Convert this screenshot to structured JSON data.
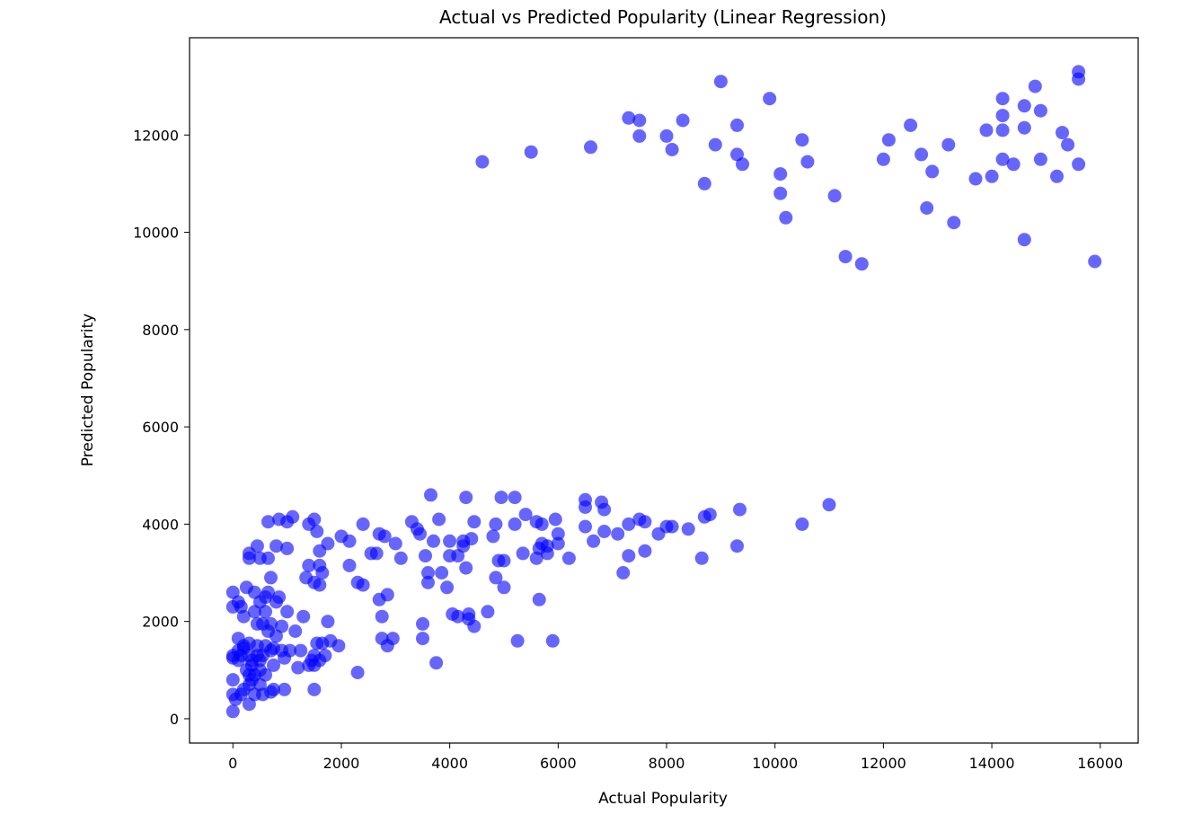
{
  "chart_data": {
    "type": "scatter",
    "title": "Actual vs Predicted Popularity (Linear Regression)",
    "xlabel": "Actual Popularity",
    "ylabel": "Predicted Popularity",
    "xlim": [
      -800,
      16700
    ],
    "ylim": [
      -500,
      14000
    ],
    "xticks": [
      "0",
      "2000",
      "4000",
      "6000",
      "8000",
      "10000",
      "12000",
      "14000",
      "16000"
    ],
    "yticks": [
      "0",
      "2000",
      "4000",
      "6000",
      "8000",
      "10000",
      "12000"
    ],
    "grid": false,
    "legend": "none",
    "point_color": "#0000ff",
    "point_alpha": 0.6,
    "points": [
      [
        4600,
        11450
      ],
      [
        5500,
        11650
      ],
      [
        6600,
        11750
      ],
      [
        7300,
        12350
      ],
      [
        7500,
        12300
      ],
      [
        7500,
        11980
      ],
      [
        8000,
        11980
      ],
      [
        8100,
        11700
      ],
      [
        8300,
        12300
      ],
      [
        8700,
        11000
      ],
      [
        8900,
        11800
      ],
      [
        9000,
        13100
      ],
      [
        9300,
        12200
      ],
      [
        9300,
        11600
      ],
      [
        9400,
        11400
      ],
      [
        9900,
        12750
      ],
      [
        10100,
        11200
      ],
      [
        10100,
        10800
      ],
      [
        10200,
        10300
      ],
      [
        10500,
        11900
      ],
      [
        10600,
        11450
      ],
      [
        11100,
        10750
      ],
      [
        11300,
        9500
      ],
      [
        11600,
        9350
      ],
      [
        12000,
        11500
      ],
      [
        12100,
        11900
      ],
      [
        12500,
        12200
      ],
      [
        12700,
        11600
      ],
      [
        12800,
        10500
      ],
      [
        12900,
        11250
      ],
      [
        13200,
        11800
      ],
      [
        13300,
        10200
      ],
      [
        13700,
        11100
      ],
      [
        13900,
        12100
      ],
      [
        14000,
        11150
      ],
      [
        14200,
        12750
      ],
      [
        14200,
        12400
      ],
      [
        14200,
        12100
      ],
      [
        14200,
        11500
      ],
      [
        14400,
        11400
      ],
      [
        14600,
        12600
      ],
      [
        14600,
        12150
      ],
      [
        14600,
        9850
      ],
      [
        14800,
        13000
      ],
      [
        14900,
        12500
      ],
      [
        14900,
        11500
      ],
      [
        15200,
        11150
      ],
      [
        15300,
        12050
      ],
      [
        15400,
        11800
      ],
      [
        15600,
        13300
      ],
      [
        15600,
        13150
      ],
      [
        15600,
        11400
      ],
      [
        15900,
        9400
      ],
      [
        0,
        150
      ],
      [
        0,
        500
      ],
      [
        0,
        800
      ],
      [
        0,
        1250
      ],
      [
        0,
        1300
      ],
      [
        0,
        2300
      ],
      [
        0,
        2600
      ],
      [
        50,
        400
      ],
      [
        100,
        1200
      ],
      [
        100,
        1400
      ],
      [
        100,
        1650
      ],
      [
        100,
        2400
      ],
      [
        150,
        500
      ],
      [
        150,
        1300
      ],
      [
        150,
        2300
      ],
      [
        200,
        1500
      ],
      [
        200,
        2100
      ],
      [
        200,
        600
      ],
      [
        200,
        1450
      ],
      [
        250,
        1000
      ],
      [
        250,
        2700
      ],
      [
        300,
        300
      ],
      [
        300,
        700
      ],
      [
        300,
        900
      ],
      [
        300,
        1300
      ],
      [
        300,
        1550
      ],
      [
        300,
        3300
      ],
      [
        300,
        3400
      ],
      [
        350,
        800
      ],
      [
        350,
        1100
      ],
      [
        350,
        1200
      ],
      [
        400,
        500
      ],
      [
        400,
        900
      ],
      [
        400,
        2200
      ],
      [
        400,
        2600
      ],
      [
        450,
        1300
      ],
      [
        450,
        1500
      ],
      [
        450,
        1950
      ],
      [
        450,
        3550
      ],
      [
        500,
        700
      ],
      [
        500,
        1000
      ],
      [
        500,
        1200
      ],
      [
        500,
        2400
      ],
      [
        500,
        3300
      ],
      [
        550,
        500
      ],
      [
        550,
        1300
      ],
      [
        550,
        1950
      ],
      [
        600,
        900
      ],
      [
        600,
        1500
      ],
      [
        600,
        2200
      ],
      [
        600,
        2500
      ],
      [
        650,
        1800
      ],
      [
        650,
        2600
      ],
      [
        650,
        3300
      ],
      [
        650,
        4050
      ],
      [
        700,
        550
      ],
      [
        700,
        1400
      ],
      [
        700,
        1950
      ],
      [
        700,
        2900
      ],
      [
        750,
        600
      ],
      [
        750,
        1100
      ],
      [
        750,
        1450
      ],
      [
        800,
        1700
      ],
      [
        800,
        2400
      ],
      [
        800,
        3550
      ],
      [
        850,
        2500
      ],
      [
        850,
        4100
      ],
      [
        900,
        1400
      ],
      [
        900,
        1900
      ],
      [
        950,
        600
      ],
      [
        950,
        1250
      ],
      [
        1000,
        2200
      ],
      [
        1000,
        3500
      ],
      [
        1000,
        4050
      ],
      [
        1050,
        1400
      ],
      [
        1100,
        4150
      ],
      [
        1150,
        1800
      ],
      [
        1200,
        1050
      ],
      [
        1250,
        1400
      ],
      [
        1300,
        2100
      ],
      [
        1350,
        2900
      ],
      [
        1400,
        1100
      ],
      [
        1400,
        3150
      ],
      [
        1400,
        4000
      ],
      [
        1450,
        1200
      ],
      [
        1500,
        600
      ],
      [
        1500,
        1100
      ],
      [
        1500,
        1300
      ],
      [
        1500,
        2800
      ],
      [
        1500,
        4100
      ],
      [
        1550,
        1550
      ],
      [
        1550,
        3850
      ],
      [
        1600,
        1200
      ],
      [
        1600,
        2750
      ],
      [
        1600,
        3150
      ],
      [
        1600,
        3450
      ],
      [
        1650,
        1550
      ],
      [
        1650,
        3000
      ],
      [
        1700,
        1300
      ],
      [
        1750,
        2000
      ],
      [
        1750,
        3600
      ],
      [
        1800,
        1600
      ],
      [
        1950,
        1500
      ],
      [
        2000,
        3750
      ],
      [
        2150,
        3650
      ],
      [
        2150,
        3150
      ],
      [
        2300,
        950
      ],
      [
        2300,
        2800
      ],
      [
        2400,
        4000
      ],
      [
        2400,
        2750
      ],
      [
        2550,
        3400
      ],
      [
        2650,
        3400
      ],
      [
        2700,
        2450
      ],
      [
        2700,
        3800
      ],
      [
        2750,
        1650
      ],
      [
        2750,
        2100
      ],
      [
        2800,
        3750
      ],
      [
        2850,
        2550
      ],
      [
        2850,
        1500
      ],
      [
        2950,
        1650
      ],
      [
        3000,
        3600
      ],
      [
        3100,
        3300
      ],
      [
        3300,
        4050
      ],
      [
        3400,
        3900
      ],
      [
        3450,
        3800
      ],
      [
        3500,
        1950
      ],
      [
        3500,
        1650
      ],
      [
        3550,
        3350
      ],
      [
        3600,
        2800
      ],
      [
        3600,
        3000
      ],
      [
        3650,
        4600
      ],
      [
        3700,
        3650
      ],
      [
        3750,
        1150
      ],
      [
        3800,
        4100
      ],
      [
        3850,
        3000
      ],
      [
        3950,
        2700
      ],
      [
        4000,
        3650
      ],
      [
        4000,
        3350
      ],
      [
        4050,
        2150
      ],
      [
        4150,
        3350
      ],
      [
        4150,
        2100
      ],
      [
        4250,
        3550
      ],
      [
        4250,
        3650
      ],
      [
        4300,
        4550
      ],
      [
        4300,
        3100
      ],
      [
        4350,
        2150
      ],
      [
        4350,
        2050
      ],
      [
        4400,
        3700
      ],
      [
        4450,
        4050
      ],
      [
        4450,
        1900
      ],
      [
        4700,
        2200
      ],
      [
        4800,
        3750
      ],
      [
        4850,
        4000
      ],
      [
        4850,
        2900
      ],
      [
        4900,
        3250
      ],
      [
        4950,
        4550
      ],
      [
        5000,
        2700
      ],
      [
        5000,
        3250
      ],
      [
        5200,
        4550
      ],
      [
        5200,
        4000
      ],
      [
        5250,
        1600
      ],
      [
        5350,
        3400
      ],
      [
        5400,
        4200
      ],
      [
        5600,
        4050
      ],
      [
        5600,
        3300
      ],
      [
        5650,
        2450
      ],
      [
        5650,
        3500
      ],
      [
        5700,
        4000
      ],
      [
        5700,
        3600
      ],
      [
        5800,
        3550
      ],
      [
        5800,
        3400
      ],
      [
        5900,
        1600
      ],
      [
        5950,
        4100
      ],
      [
        6000,
        3800
      ],
      [
        6000,
        3600
      ],
      [
        6200,
        3300
      ],
      [
        6500,
        4500
      ],
      [
        6500,
        4350
      ],
      [
        6500,
        3950
      ],
      [
        6650,
        3650
      ],
      [
        6800,
        4450
      ],
      [
        6850,
        4300
      ],
      [
        6850,
        3850
      ],
      [
        7100,
        3800
      ],
      [
        7200,
        3000
      ],
      [
        7300,
        3350
      ],
      [
        7300,
        4000
      ],
      [
        7500,
        4100
      ],
      [
        7600,
        4050
      ],
      [
        7600,
        3450
      ],
      [
        7850,
        3800
      ],
      [
        8000,
        3950
      ],
      [
        8100,
        3950
      ],
      [
        8400,
        3900
      ],
      [
        8650,
        3300
      ],
      [
        8700,
        4150
      ],
      [
        8800,
        4200
      ],
      [
        9300,
        3550
      ],
      [
        9350,
        4300
      ],
      [
        10500,
        4000
      ],
      [
        11000,
        4400
      ]
    ]
  }
}
